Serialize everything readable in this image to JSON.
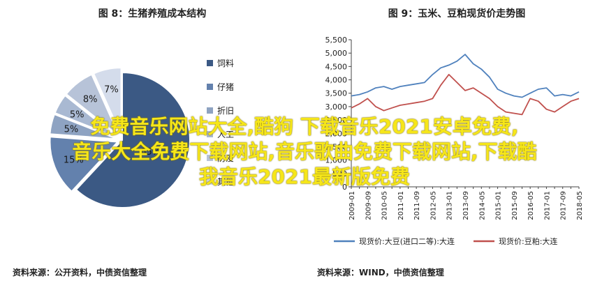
{
  "chart_data": [
    {
      "type": "pie",
      "title": "图 8：生猪养殖成本结构",
      "source": "资料来源：公开资料，中债资信整理",
      "categories": [
        "饲料",
        "仔猪",
        "折旧",
        "人工",
        "防疫",
        "其他"
      ],
      "values": [
        65,
        15,
        5,
        5,
        8,
        7
      ],
      "value_labels": [
        "65%",
        "15%",
        "5%",
        "5%",
        "8%",
        "7%"
      ],
      "colors": [
        "#3b5984",
        "#6381ad",
        "#8ea3c2",
        "#a9b9d2",
        "#b7c3d8",
        "#d4dceb"
      ],
      "legend": "right"
    },
    {
      "type": "line",
      "title": "图 9：玉米、豆粕现货价走势图",
      "source": "资料来源：WIND，中债资信整理",
      "x": [
        "2009-01",
        "2009-05",
        "2009-09",
        "2010-01",
        "2010-05",
        "2010-09",
        "2011-01",
        "2011-05",
        "2011-09",
        "2012-01",
        "2012-05",
        "2012-09",
        "2013-01",
        "2013-05",
        "2013-09",
        "2014-01",
        "2014-05",
        "2014-09",
        "2015-01",
        "2015-05",
        "2015-09",
        "2016-01",
        "2016-05",
        "2016-09",
        "2017-01",
        "2017-05",
        "2017-09",
        "2018-01",
        "2018-05"
      ],
      "ylim": [
        0,
        5500
      ],
      "yticks": [
        "0",
        "500",
        "1,000",
        "1,500",
        "2,000",
        "2,500",
        "3,000",
        "3,500",
        "4,000",
        "4,500",
        "5,000",
        "5,500"
      ],
      "legend": "bottom",
      "series": [
        {
          "name": "现货价:大豆(进口二等):大连",
          "color": "#4f81bd",
          "values": [
            3400,
            3450,
            3550,
            3700,
            3750,
            3650,
            3750,
            3800,
            3850,
            3900,
            4200,
            4450,
            4550,
            4700,
            4950,
            4600,
            4400,
            4100,
            3650,
            3500,
            3400,
            3350,
            3500,
            3650,
            3700,
            3400,
            3450,
            3400,
            3550
          ]
        },
        {
          "name": "现货价:豆粕:大连",
          "color": "#c0504d",
          "values": [
            2950,
            3100,
            3300,
            3000,
            2850,
            2950,
            3050,
            3100,
            3150,
            3200,
            3300,
            3800,
            4200,
            3900,
            3600,
            3700,
            3500,
            3300,
            3000,
            2800,
            2750,
            2700,
            3300,
            3200,
            2900,
            2800,
            3000,
            3200,
            3300
          ]
        }
      ]
    }
  ],
  "watermark": {
    "line1": "免费音乐网站大全,酷狗 下载音乐2021安卓免费,",
    "line2": "音乐大全免费下载网站,音乐歌曲免费下载网站,下载酷",
    "line3": "我音乐2021最新版免费"
  }
}
